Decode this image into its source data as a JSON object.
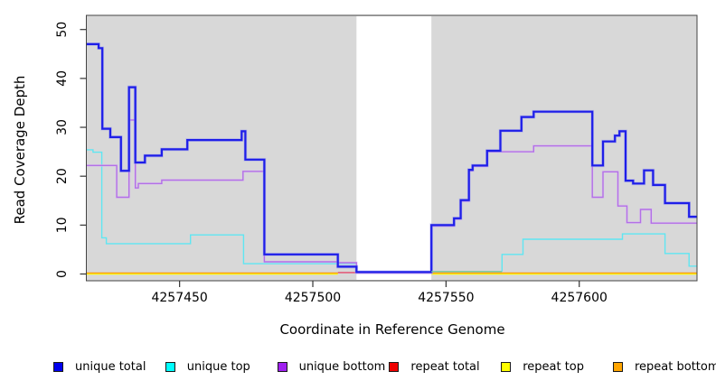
{
  "chart_data": {
    "type": "line",
    "subtype": "step-coverage",
    "title": "",
    "xlabel": "Coordinate in Reference Genome",
    "ylabel": "Read Coverage Depth",
    "x_ticks": [
      4257450,
      4257500,
      4257550,
      4257600
    ],
    "y_ticks": [
      0,
      10,
      20,
      30,
      40,
      50
    ],
    "x_range": [
      4257415,
      4257644.2
    ],
    "y_range": [
      0,
      52
    ],
    "grid": false,
    "legend_position": "bottom",
    "plot_bg": "#d8d8d8",
    "gap_band": {
      "x1": 4257516.4,
      "x2": 4257544.5,
      "color": "#ffffff"
    },
    "series": [
      {
        "id": "repeat-top",
        "label": "repeat top",
        "color": "#ffff00",
        "width": 1.4,
        "runs": [
          [
            [
              4257415,
              0
            ],
            [
              4257509.4,
              0
            ]
          ],
          [
            [
              4257544.5,
              0
            ],
            [
              4257644.2,
              0
            ]
          ]
        ]
      },
      {
        "id": "repeat-total",
        "label": "repeat total",
        "color": "#e5486b",
        "width": 1.4,
        "runs": [
          [
            [
              4257509.4,
              0.3
            ],
            [
              4257516.4,
              0.3
            ]
          ]
        ]
      },
      {
        "id": "repeat-bottom",
        "label": "repeat bottom",
        "color": "#ff9e00",
        "width": 1.4,
        "runs": [
          [
            [
              4257415,
              0.2
            ],
            [
              4257509.4,
              0.2
            ]
          ],
          [
            [
              4257544.5,
              0.2
            ],
            [
              4257644.2,
              0.2
            ]
          ]
        ]
      },
      {
        "id": "unique-top",
        "label": "unique top",
        "color": "#5fe6f2",
        "width": 1.4,
        "runs": [
          [
            [
              4257415,
              25.4
            ],
            [
              4257417.5,
              24.9
            ],
            [
              4257420.8,
              7.4
            ],
            [
              4257422.5,
              6.2
            ],
            [
              4257454.1,
              8
            ],
            [
              4257474,
              2.1
            ],
            [
              4257516.4,
              0.4
            ]
          ],
          [
            [
              4257571,
              0.5
            ],
            [
              4257571,
              4
            ],
            [
              4257578.9,
              7.1
            ],
            [
              4257616.2,
              8.2
            ],
            [
              4257632.2,
              4.2
            ],
            [
              4257641.2,
              1.6
            ],
            [
              4257644.2,
              1.6
            ]
          ]
        ]
      },
      {
        "id": "unique-bottom",
        "label": "unique bottom",
        "color": "#b370e6",
        "halo": "#dcc0f2",
        "width": 1.4,
        "runs": [
          [
            [
              4257415,
              22.2
            ],
            [
              4257426.4,
              15.7
            ],
            [
              4257431,
              31.5
            ],
            [
              4257433.4,
              17.6
            ],
            [
              4257434.5,
              18.5
            ],
            [
              4257443.3,
              19.2
            ],
            [
              4257473.8,
              21
            ],
            [
              4257481.8,
              2.5
            ],
            [
              4257509.4,
              2.3
            ],
            [
              4257516.4,
              0.2
            ],
            [
              4257544.5,
              9.8
            ],
            [
              4257553,
              11.2
            ],
            [
              4257555.5,
              14.9
            ],
            [
              4257558.6,
              21.1
            ],
            [
              4257560,
              22
            ],
            [
              4257565.4,
              25
            ],
            [
              4257582.9,
              26.2
            ],
            [
              4257604.9,
              15.7
            ],
            [
              4257608.9,
              20.9
            ],
            [
              4257614.5,
              13.9
            ],
            [
              4257617.9,
              10.5
            ],
            [
              4257623,
              13.2
            ],
            [
              4257627,
              10.4
            ],
            [
              4257644.2,
              10.4
            ]
          ]
        ]
      },
      {
        "id": "unique-total",
        "label": "unique total",
        "color": "#1e1ee8",
        "halo": "#9898f0",
        "width": 2.2,
        "runs": [
          [
            [
              4257415,
              47
            ],
            [
              4257419.6,
              46.2
            ],
            [
              4257421,
              29.7
            ],
            [
              4257424,
              28
            ],
            [
              4257428,
              21.1
            ],
            [
              4257431,
              38.2
            ],
            [
              4257433.4,
              22.8
            ],
            [
              4257437,
              24.2
            ],
            [
              4257443.3,
              25.5
            ],
            [
              4257452.9,
              27.4
            ],
            [
              4257473.3,
              29.2
            ],
            [
              4257474.7,
              23.4
            ],
            [
              4257481.8,
              4
            ],
            [
              4257509.4,
              1.5
            ],
            [
              4257516.4,
              0.4
            ],
            [
              4257544.5,
              10
            ],
            [
              4257553,
              11.4
            ],
            [
              4257555.5,
              15.1
            ],
            [
              4257558.6,
              21.3
            ],
            [
              4257560,
              22.2
            ],
            [
              4257565.4,
              25.2
            ],
            [
              4257570.4,
              29.3
            ],
            [
              4257578.3,
              32.1
            ],
            [
              4257582.9,
              33.2
            ],
            [
              4257604.9,
              22.2
            ],
            [
              4257608.9,
              27.1
            ],
            [
              4257613.4,
              28.3
            ],
            [
              4257615.1,
              29.2
            ],
            [
              4257617.4,
              19.1
            ],
            [
              4257620.2,
              18.5
            ],
            [
              4257624.3,
              21.2
            ],
            [
              4257627.7,
              18.2
            ],
            [
              4257632.2,
              14.5
            ],
            [
              4257641.2,
              11.7
            ],
            [
              4257644.2,
              11.7
            ]
          ]
        ]
      }
    ],
    "blend_segments": [
      {
        "x1": 4257544.5,
        "x2": 4257571,
        "v": 0.5,
        "color": "#70c9a2"
      }
    ],
    "legend": [
      {
        "label": "unique total",
        "color": "#0000ee"
      },
      {
        "label": "unique top",
        "color": "#00ffff"
      },
      {
        "label": "unique bottom",
        "color": "#a020f0"
      },
      {
        "label": "repeat total",
        "color": "#ee0000"
      },
      {
        "label": "repeat top",
        "color": "#ffff00"
      },
      {
        "label": "repeat bottom",
        "color": "#ffa500"
      }
    ]
  }
}
